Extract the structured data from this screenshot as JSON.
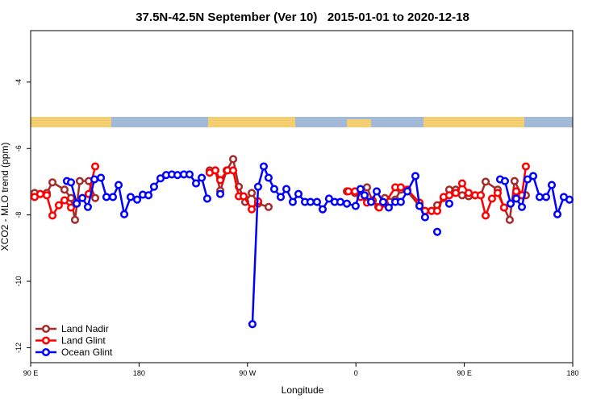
{
  "chart_data": {
    "type": "line",
    "title": "37.5N-42.5N September (Ver 10)   2015-01-01 to 2020-12-18",
    "x_label": "Longitude",
    "y_label": "XCO2 - MLO trend (ppm)",
    "xlim": [
      90,
      540
    ],
    "ylim": [
      -12.45,
      -2.45
    ],
    "xticks": [
      {
        "value": 90,
        "label": "90 E"
      },
      {
        "value": 180,
        "label": "180"
      },
      {
        "value": 270,
        "label": "90 W"
      },
      {
        "value": 360,
        "label": "0"
      },
      {
        "value": 450,
        "label": "90 E"
      },
      {
        "value": 540,
        "label": "180"
      }
    ],
    "yticks": [
      -4,
      -6,
      -8,
      -10,
      -12
    ],
    "legend": "bottom-left",
    "series": [
      {
        "name": "Land Nadir",
        "color": "#a52a2a",
        "x": [
          93.3,
          98.0,
          103.4,
          108.1,
          118.1,
          123.5,
          126.8,
          130.8,
          138.2,
          143.6,
          200,
          238.6,
          243.3,
          247.4,
          252.7,
          258.1,
          262.8,
          268.1,
          273.5,
          278.8,
          287.5,
          340,
          352.5,
          359.2,
          363.8,
          369.2,
          373.9,
          378.6,
          384.0,
          392.7,
          397.3,
          402.7,
          412.8,
          417.4,
          422.8,
          427.5,
          432.8,
          437.5,
          442.9,
          448.2,
          453.6,
          459.0,
          463.6,
          467.7,
          477.7,
          483.0,
          487.7,
          491.7,
          497.8,
          501.1
        ],
        "values": [
          -7.34,
          -7.37,
          -7.34,
          -7.02,
          -7.24,
          -7.49,
          -8.15,
          -6.98,
          -6.98,
          -7.49,
          null,
          -6.66,
          -6.66,
          -7.27,
          -6.66,
          -6.32,
          -7.15,
          -7.61,
          -7.34,
          -7.66,
          -7.76,
          null,
          -7.29,
          -7.34,
          -7.34,
          -7.17,
          -7.59,
          -7.76,
          -7.49,
          -7.54,
          -7.24,
          -7.29,
          -7.73,
          -7.88,
          -7.88,
          -7.71,
          -7.49,
          -7.24,
          -7.24,
          -7.41,
          -7.44,
          -7.41,
          -7.41,
          -7.0,
          -7.24,
          -7.78,
          -8.15,
          -6.98,
          -7.41,
          -7.41
        ]
      },
      {
        "name": "Land Glint",
        "color": "#ff0000",
        "x": [
          93.3,
          98.0,
          103.4,
          108.1,
          113.4,
          118.1,
          123.5,
          128.2,
          138.2,
          143.6,
          200,
          238.6,
          243.3,
          247.4,
          253.4,
          258.1,
          262.8,
          266.8,
          273.5,
          278.8,
          340,
          353.8,
          359.2,
          363.8,
          369.2,
          373.9,
          379.3,
          384.0,
          392.7,
          397.3,
          402.7,
          412.8,
          417.4,
          422.8,
          427.5,
          432.8,
          437.5,
          442.9,
          448.2,
          453.6,
          459.0,
          463.6,
          467.7,
          473.0,
          477.7,
          483.0,
          488.4,
          493.1,
          497.8,
          501.1
        ],
        "values": [
          -7.46,
          -7.37,
          -7.41,
          -8.02,
          -7.71,
          -7.56,
          -7.78,
          -7.66,
          -7.37,
          -6.54,
          null,
          -6.73,
          -6.66,
          -6.95,
          -6.66,
          -6.66,
          -7.44,
          -7.44,
          -7.83,
          -7.59,
          null,
          -7.29,
          -7.29,
          -7.46,
          -7.63,
          -7.56,
          -7.78,
          -7.66,
          -7.17,
          -7.17,
          -7.24,
          -7.63,
          -7.88,
          -7.88,
          -7.88,
          -7.46,
          -7.41,
          -7.34,
          -7.05,
          -7.34,
          -7.41,
          -7.41,
          -8.02,
          -7.51,
          -7.34,
          -7.78,
          -7.66,
          -7.29,
          -7.41,
          -6.54
        ]
      },
      {
        "name": "Ocean Glint",
        "color": "#0000ff",
        "x": [
          120.1,
          123.5,
          128.2,
          132.9,
          137.5,
          142.9,
          148.3,
          152.9,
          158.3,
          163.0,
          167.7,
          173.0,
          178.4,
          183.1,
          187.8,
          192.4,
          197.8,
          202.5,
          207.2,
          211.9,
          217.2,
          221.9,
          227.3,
          232.0,
          236.6,
          242,
          247.4,
          260,
          274.1,
          278.8,
          283.5,
          287.5,
          292.2,
          297.6,
          302.3,
          307.6,
          312.3,
          317.7,
          322.3,
          327.7,
          332.4,
          337.7,
          342.4,
          347.1,
          352.5,
          359.8,
          363.8,
          367.2,
          372.6,
          377.3,
          382.6,
          387.3,
          392.7,
          397.3,
          402.7,
          409.4,
          412.8,
          417.4,
          422,
          427.5,
          432,
          437.5,
          460,
          479.7,
          483.7,
          488.4,
          493.1,
          497.8,
          502.5,
          507.2,
          512.5,
          517.9,
          522.6,
          527.3,
          532.6,
          537.3
        ],
        "values": [
          -6.98,
          -7.02,
          -7.66,
          -7.49,
          -7.76,
          -6.93,
          -6.88,
          -7.46,
          -7.46,
          -7.1,
          -7.98,
          -7.46,
          -7.54,
          -7.39,
          -7.41,
          -7.15,
          -6.9,
          -6.8,
          -6.78,
          -6.8,
          -6.78,
          -6.78,
          -7.05,
          -6.88,
          -7.51,
          null,
          -7.37,
          null,
          -11.29,
          -7.15,
          -6.54,
          -6.88,
          -7.22,
          -7.46,
          -7.22,
          -7.61,
          -7.37,
          -7.61,
          -7.61,
          -7.61,
          -7.83,
          -7.51,
          -7.61,
          -7.61,
          -7.66,
          -7.73,
          -7.22,
          -7.41,
          -7.61,
          -7.29,
          -7.61,
          -7.78,
          -7.61,
          -7.61,
          -7.29,
          -6.83,
          -7.73,
          -8.07,
          null,
          -8.51,
          null,
          -7.66,
          null,
          -6.93,
          -6.98,
          -7.66,
          -7.51,
          -7.76,
          -6.93,
          -6.83,
          -7.46,
          -7.46,
          -7.1,
          -7.98,
          -7.46,
          -7.54
        ]
      }
    ]
  }
}
